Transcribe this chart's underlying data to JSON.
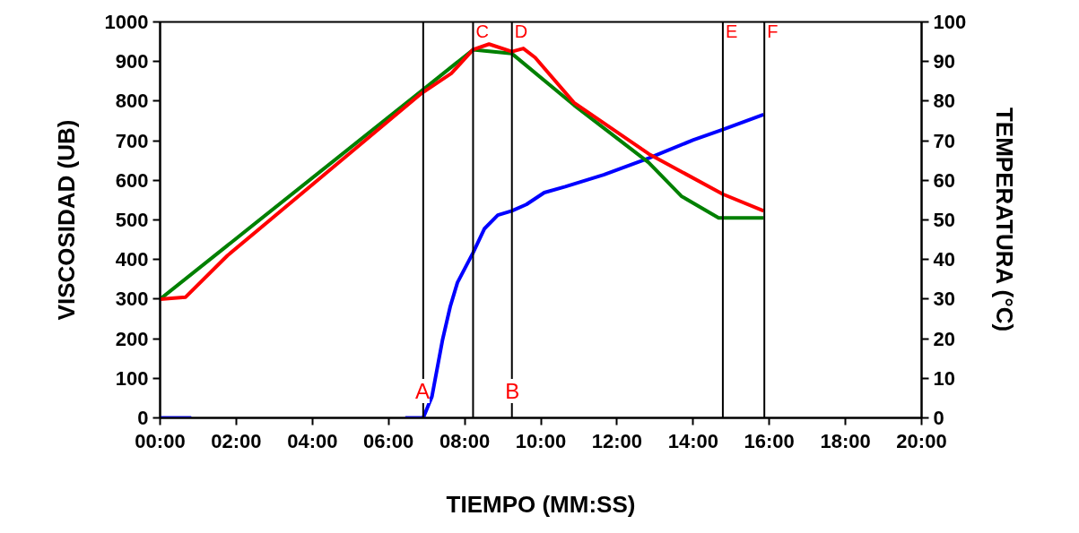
{
  "chart_data": {
    "type": "line",
    "xlabel": "TIEMPO (MM:SS)",
    "ylabel": "VISCOSIDAD (UB)",
    "y2label": "TEMPERATURA (°C)",
    "xlim": [
      0,
      20
    ],
    "xticks": [
      {
        "value": 0,
        "label": "00:00"
      },
      {
        "value": 2,
        "label": "02:00"
      },
      {
        "value": 4,
        "label": "04:00"
      },
      {
        "value": 6,
        "label": "06:00"
      },
      {
        "value": 8,
        "label": "08:00"
      },
      {
        "value": 10,
        "label": "10:00"
      },
      {
        "value": 12,
        "label": "12:00"
      },
      {
        "value": 14,
        "label": "14:00"
      },
      {
        "value": 16,
        "label": "16:00"
      },
      {
        "value": 18,
        "label": "18:00"
      },
      {
        "value": 20,
        "label": "20:00"
      }
    ],
    "ylim": [
      0,
      1000
    ],
    "yticks": [
      0,
      100,
      200,
      300,
      400,
      500,
      600,
      700,
      800,
      900,
      1000
    ],
    "y2lim": [
      0,
      100
    ],
    "y2ticks": [
      0,
      10,
      20,
      30,
      40,
      50,
      60,
      70,
      80,
      90,
      100
    ],
    "grid": false,
    "marker": "none",
    "line_style": "solid",
    "series": [
      {
        "color": "#0000ff",
        "x": [
          0,
          0.82,
          3.5,
          6.44,
          6.91,
          7.14,
          7.42,
          7.62,
          7.81,
          8.22,
          8.52,
          8.87,
          9.24,
          9.62,
          10.09,
          10.64,
          11.65,
          12.83,
          14.01,
          14.78,
          15.85
        ],
        "values": [
          0,
          0,
          null,
          0,
          0,
          54,
          198,
          281,
          342,
          417,
          478,
          512,
          523,
          539,
          569,
          584,
          614,
          656,
          702,
          728,
          766
        ]
      },
      {
        "color": "#008000",
        "axis": "y2",
        "x": [
          0,
          6.87,
          8.22,
          9.24,
          10.87,
          12.83,
          13.69,
          14.67,
          15.85
        ],
        "values": [
          30,
          82.6,
          93,
          92,
          79,
          64.5,
          56,
          50.5,
          50.5
        ]
      },
      {
        "color": "#ff0000",
        "axis": "y2",
        "x": [
          0,
          0.67,
          1.77,
          6.87,
          7.65,
          8.22,
          8.64,
          9.24,
          9.54,
          9.85,
          10.87,
          12.83,
          14.78,
          15.85
        ],
        "values": [
          30,
          30.5,
          41,
          82,
          87,
          93,
          94.4,
          92.5,
          93.3,
          91,
          79.6,
          66.7,
          56.5,
          52.3
        ]
      }
    ],
    "ref_lines": [
      {
        "axis": "x",
        "value": 6.91,
        "color": "#000000"
      },
      {
        "axis": "x",
        "value": 8.22,
        "color": "#000000",
        "label": "C"
      },
      {
        "axis": "x",
        "value": 9.24,
        "color": "#000000",
        "label": "D"
      },
      {
        "axis": "x",
        "value": 14.78,
        "color": "#000000",
        "label": "E"
      },
      {
        "axis": "x",
        "value": 15.87,
        "color": "#000000",
        "label": "F"
      }
    ],
    "annotations": [
      {
        "text": "A",
        "x": 6.89,
        "y": 68
      },
      {
        "text": "B",
        "x": 9.25,
        "y": 68
      }
    ]
  }
}
